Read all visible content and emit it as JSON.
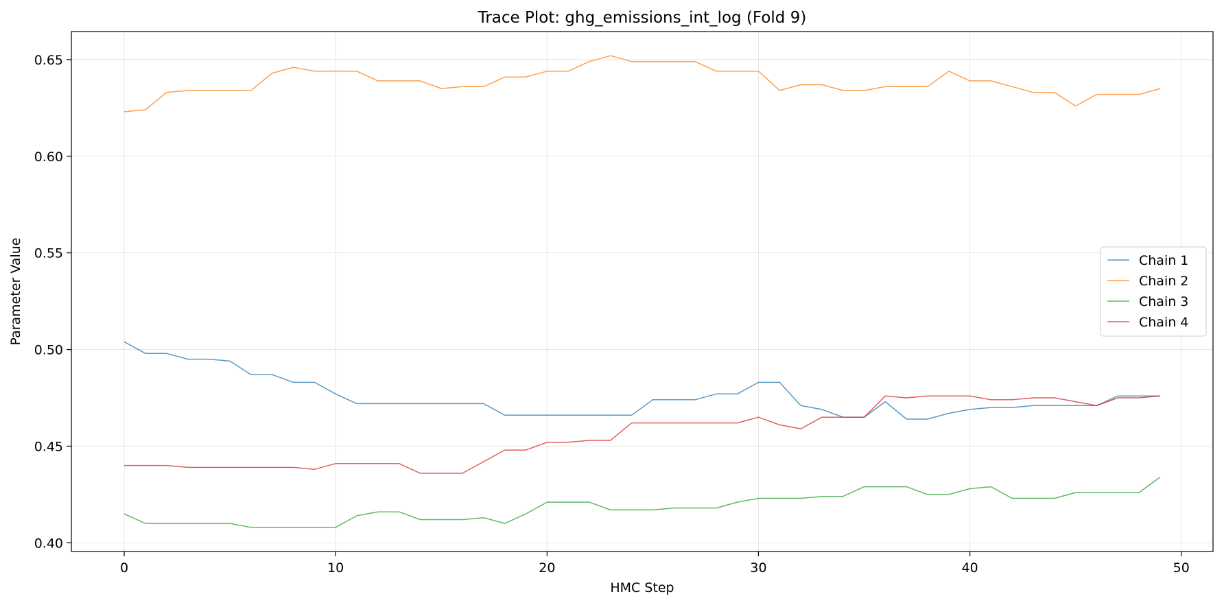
{
  "chart_data": {
    "type": "line",
    "title": "Trace Plot: ghg_emissions_int_log (Fold 9)",
    "xlabel": "HMC Step",
    "ylabel": "Parameter Value",
    "xlim": [
      -2.5,
      51.5
    ],
    "ylim": [
      0.3955,
      0.6645
    ],
    "xticks": [
      0,
      10,
      20,
      30,
      40,
      50
    ],
    "xtick_labels": [
      "0",
      "10",
      "20",
      "30",
      "40",
      "50"
    ],
    "yticks": [
      0.4,
      0.45,
      0.5,
      0.55,
      0.6,
      0.65
    ],
    "ytick_labels": [
      "0.40",
      "0.45",
      "0.50",
      "0.55",
      "0.60",
      "0.65"
    ],
    "grid": true,
    "legend_position": "center-right",
    "x": [
      0,
      1,
      2,
      3,
      4,
      5,
      6,
      7,
      8,
      9,
      10,
      11,
      12,
      13,
      14,
      15,
      16,
      17,
      18,
      19,
      20,
      21,
      22,
      23,
      24,
      25,
      26,
      27,
      28,
      29,
      30,
      31,
      32,
      33,
      34,
      35,
      36,
      37,
      38,
      39,
      40,
      41,
      42,
      43,
      44,
      45,
      46,
      47,
      48,
      49
    ],
    "series": [
      {
        "name": "Chain 1",
        "color": "#1f77b4",
        "values": [
          0.504,
          0.498,
          0.498,
          0.495,
          0.495,
          0.494,
          0.487,
          0.487,
          0.483,
          0.483,
          0.477,
          0.472,
          0.472,
          0.472,
          0.472,
          0.472,
          0.472,
          0.472,
          0.466,
          0.466,
          0.466,
          0.466,
          0.466,
          0.466,
          0.466,
          0.474,
          0.474,
          0.474,
          0.477,
          0.477,
          0.483,
          0.483,
          0.471,
          0.469,
          0.465,
          0.465,
          0.473,
          0.464,
          0.464,
          0.467,
          0.469,
          0.47,
          0.47,
          0.471,
          0.471,
          0.471,
          0.471,
          0.476,
          0.476,
          0.476
        ]
      },
      {
        "name": "Chain 2",
        "color": "#ff7f0e",
        "values": [
          0.623,
          0.624,
          0.633,
          0.634,
          0.634,
          0.634,
          0.634,
          0.643,
          0.646,
          0.644,
          0.644,
          0.644,
          0.639,
          0.639,
          0.639,
          0.635,
          0.636,
          0.636,
          0.641,
          0.641,
          0.644,
          0.644,
          0.649,
          0.652,
          0.649,
          0.649,
          0.649,
          0.649,
          0.644,
          0.644,
          0.644,
          0.634,
          0.637,
          0.637,
          0.634,
          0.634,
          0.636,
          0.636,
          0.636,
          0.644,
          0.639,
          0.639,
          0.636,
          0.633,
          0.633,
          0.626,
          0.632,
          0.632,
          0.632,
          0.635
        ]
      },
      {
        "name": "Chain 3",
        "color": "#2ca02c",
        "values": [
          0.415,
          0.41,
          0.41,
          0.41,
          0.41,
          0.41,
          0.408,
          0.408,
          0.408,
          0.408,
          0.408,
          0.414,
          0.416,
          0.416,
          0.412,
          0.412,
          0.412,
          0.413,
          0.41,
          0.415,
          0.421,
          0.421,
          0.421,
          0.417,
          0.417,
          0.417,
          0.418,
          0.418,
          0.418,
          0.421,
          0.423,
          0.423,
          0.423,
          0.424,
          0.424,
          0.429,
          0.429,
          0.429,
          0.425,
          0.425,
          0.428,
          0.429,
          0.423,
          0.423,
          0.423,
          0.426,
          0.426,
          0.426,
          0.426,
          0.434
        ]
      },
      {
        "name": "Chain 4",
        "color": "#d62728",
        "values": [
          0.44,
          0.44,
          0.44,
          0.439,
          0.439,
          0.439,
          0.439,
          0.439,
          0.439,
          0.438,
          0.441,
          0.441,
          0.441,
          0.441,
          0.436,
          0.436,
          0.436,
          0.442,
          0.448,
          0.448,
          0.452,
          0.452,
          0.453,
          0.453,
          0.462,
          0.462,
          0.462,
          0.462,
          0.462,
          0.462,
          0.465,
          0.461,
          0.459,
          0.465,
          0.465,
          0.465,
          0.476,
          0.475,
          0.476,
          0.476,
          0.476,
          0.474,
          0.474,
          0.475,
          0.475,
          0.473,
          0.471,
          0.475,
          0.475,
          0.476
        ]
      }
    ]
  }
}
